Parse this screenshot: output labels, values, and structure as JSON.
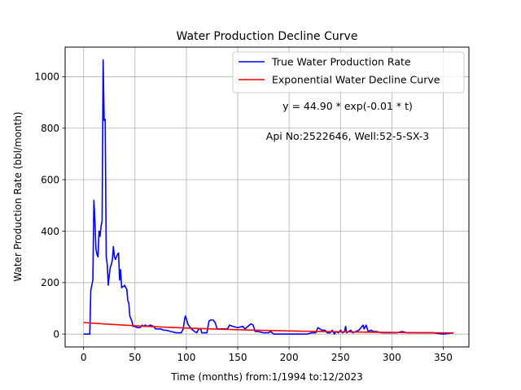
{
  "chart_data": {
    "type": "line",
    "title": "Water Production Decline Curve",
    "xlabel": "Time (months) from:1/1994 to:12/2023",
    "ylabel": "Water Production Rate (bbl/month)",
    "xlim": [
      -18,
      375
    ],
    "ylim": [
      -50,
      1115
    ],
    "xticks": [
      0,
      50,
      100,
      150,
      200,
      250,
      300,
      350
    ],
    "yticks": [
      0,
      200,
      400,
      600,
      800,
      1000
    ],
    "grid": true,
    "legend_position": "top-right",
    "series": [
      {
        "name": "True Water Production Rate",
        "color": "#0000ff",
        "points": [
          [
            0,
            0
          ],
          [
            6,
            0
          ],
          [
            7,
            170
          ],
          [
            8,
            190
          ],
          [
            9,
            210
          ],
          [
            10,
            520
          ],
          [
            11,
            440
          ],
          [
            12,
            330
          ],
          [
            13,
            310
          ],
          [
            14,
            300
          ],
          [
            15,
            400
          ],
          [
            16,
            380
          ],
          [
            17,
            420
          ],
          [
            18,
            440
          ],
          [
            19,
            1065
          ],
          [
            20,
            830
          ],
          [
            21,
            835
          ],
          [
            22,
            300
          ],
          [
            23,
            270
          ],
          [
            24,
            190
          ],
          [
            25,
            230
          ],
          [
            26,
            260
          ],
          [
            27,
            270
          ],
          [
            28,
            290
          ],
          [
            29,
            340
          ],
          [
            30,
            300
          ],
          [
            31,
            290
          ],
          [
            32,
            300
          ],
          [
            33,
            310
          ],
          [
            34,
            315
          ],
          [
            35,
            210
          ],
          [
            36,
            250
          ],
          [
            37,
            180
          ],
          [
            38,
            185
          ],
          [
            39,
            185
          ],
          [
            40,
            190
          ],
          [
            41,
            180
          ],
          [
            42,
            175
          ],
          [
            43,
            130
          ],
          [
            44,
            120
          ],
          [
            45,
            70
          ],
          [
            46,
            60
          ],
          [
            47,
            50
          ],
          [
            48,
            30
          ],
          [
            50,
            30
          ],
          [
            52,
            25
          ],
          [
            55,
            25
          ],
          [
            57,
            35
          ],
          [
            58,
            30
          ],
          [
            60,
            35
          ],
          [
            62,
            30
          ],
          [
            65,
            35
          ],
          [
            68,
            30
          ],
          [
            70,
            20
          ],
          [
            75,
            20
          ],
          [
            78,
            15
          ],
          [
            80,
            15
          ],
          [
            85,
            10
          ],
          [
            90,
            5
          ],
          [
            95,
            5
          ],
          [
            97,
            20
          ],
          [
            98,
            50
          ],
          [
            99,
            70
          ],
          [
            100,
            60
          ],
          [
            101,
            45
          ],
          [
            102,
            35
          ],
          [
            103,
            30
          ],
          [
            105,
            20
          ],
          [
            108,
            10
          ],
          [
            110,
            5
          ],
          [
            112,
            20
          ],
          [
            114,
            20
          ],
          [
            115,
            5
          ],
          [
            120,
            5
          ],
          [
            122,
            50
          ],
          [
            124,
            55
          ],
          [
            126,
            55
          ],
          [
            128,
            45
          ],
          [
            130,
            20
          ],
          [
            135,
            20
          ],
          [
            140,
            20
          ],
          [
            142,
            35
          ],
          [
            145,
            30
          ],
          [
            150,
            25
          ],
          [
            155,
            30
          ],
          [
            157,
            20
          ],
          [
            160,
            30
          ],
          [
            163,
            40
          ],
          [
            165,
            35
          ],
          [
            167,
            10
          ],
          [
            170,
            10
          ],
          [
            175,
            5
          ],
          [
            180,
            5
          ],
          [
            182,
            10
          ],
          [
            185,
            0
          ],
          [
            190,
            0
          ],
          [
            200,
            0
          ],
          [
            210,
            0
          ],
          [
            218,
            0
          ],
          [
            222,
            5
          ],
          [
            226,
            5
          ],
          [
            228,
            25
          ],
          [
            230,
            20
          ],
          [
            232,
            15
          ],
          [
            235,
            15
          ],
          [
            237,
            5
          ],
          [
            240,
            5
          ],
          [
            242,
            15
          ],
          [
            244,
            0
          ],
          [
            246,
            10
          ],
          [
            248,
            5
          ],
          [
            250,
            15
          ],
          [
            252,
            5
          ],
          [
            254,
            10
          ],
          [
            255,
            30
          ],
          [
            256,
            5
          ],
          [
            258,
            10
          ],
          [
            260,
            15
          ],
          [
            262,
            5
          ],
          [
            265,
            10
          ],
          [
            268,
            15
          ],
          [
            270,
            25
          ],
          [
            272,
            35
          ],
          [
            273,
            20
          ],
          [
            275,
            35
          ],
          [
            277,
            10
          ],
          [
            280,
            15
          ],
          [
            282,
            10
          ],
          [
            285,
            10
          ],
          [
            290,
            5
          ],
          [
            295,
            5
          ],
          [
            300,
            5
          ],
          [
            305,
            5
          ],
          [
            310,
            10
          ],
          [
            315,
            5
          ],
          [
            320,
            5
          ],
          [
            325,
            5
          ],
          [
            330,
            5
          ],
          [
            340,
            5
          ],
          [
            350,
            0
          ],
          [
            360,
            5
          ]
        ]
      },
      {
        "name": "Exponential Water Decline Curve",
        "color": "#ff0000",
        "function": {
          "a": 44.9,
          "k": 0.0065,
          "x_start": 0,
          "x_end": 360
        }
      }
    ],
    "annotations": [
      {
        "text": "y = 44.90 * exp(-0.01 * t)"
      },
      {
        "text": "Api No:2522646, Well:52-5-SX-3"
      }
    ]
  }
}
